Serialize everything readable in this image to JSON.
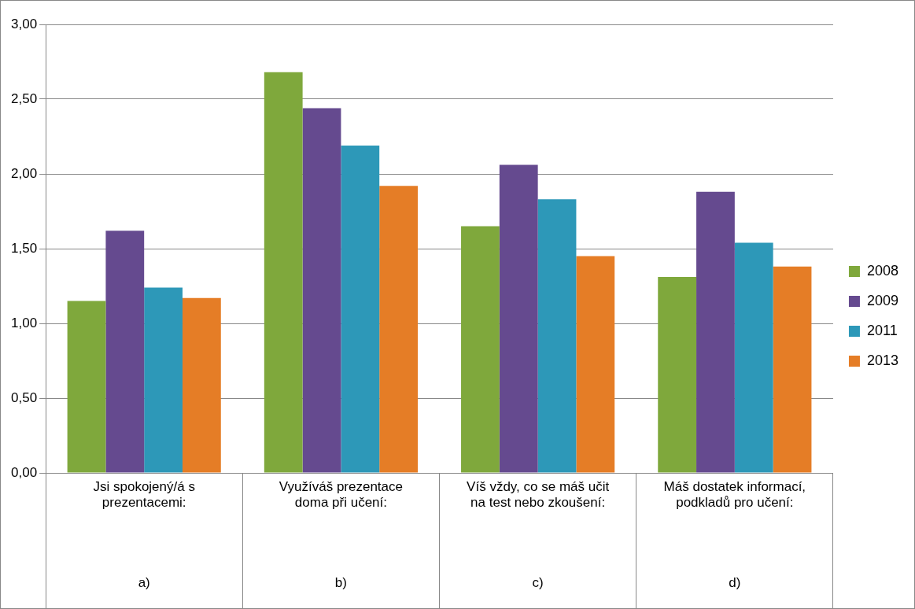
{
  "chart_data": {
    "type": "bar",
    "categories": [
      "Jsi spokojený/á s prezentacemi: a)",
      "Využíváš prezentace doma při učení: b)",
      "Víš vždy, co se máš učit na test nebo zkoušení: c)",
      "Máš dostatek informací, podkladů pro učení: d)"
    ],
    "series": [
      {
        "name": "2008",
        "color": "#7fa83c",
        "values": [
          1.15,
          2.68,
          1.65,
          1.31
        ]
      },
      {
        "name": "2009",
        "color": "#654a8f",
        "values": [
          1.62,
          2.44,
          2.06,
          1.88
        ]
      },
      {
        "name": "2011",
        "color": "#2d98b8",
        "values": [
          1.24,
          2.19,
          1.83,
          1.54
        ]
      },
      {
        "name": "2013",
        "color": "#e57d26",
        "values": [
          1.17,
          1.92,
          1.45,
          1.38
        ]
      }
    ],
    "ylim": [
      0,
      3
    ],
    "yticks": [
      {
        "value": 0,
        "label": "0,00"
      },
      {
        "value": 0.5,
        "label": "0,50"
      },
      {
        "value": 1,
        "label": "1,00"
      },
      {
        "value": 1.5,
        "label": "1,50"
      },
      {
        "value": 2,
        "label": "2,00"
      },
      {
        "value": 2.5,
        "label": "2,50"
      },
      {
        "value": 3,
        "label": "3,00"
      }
    ],
    "grid": "y",
    "legend": "right"
  }
}
